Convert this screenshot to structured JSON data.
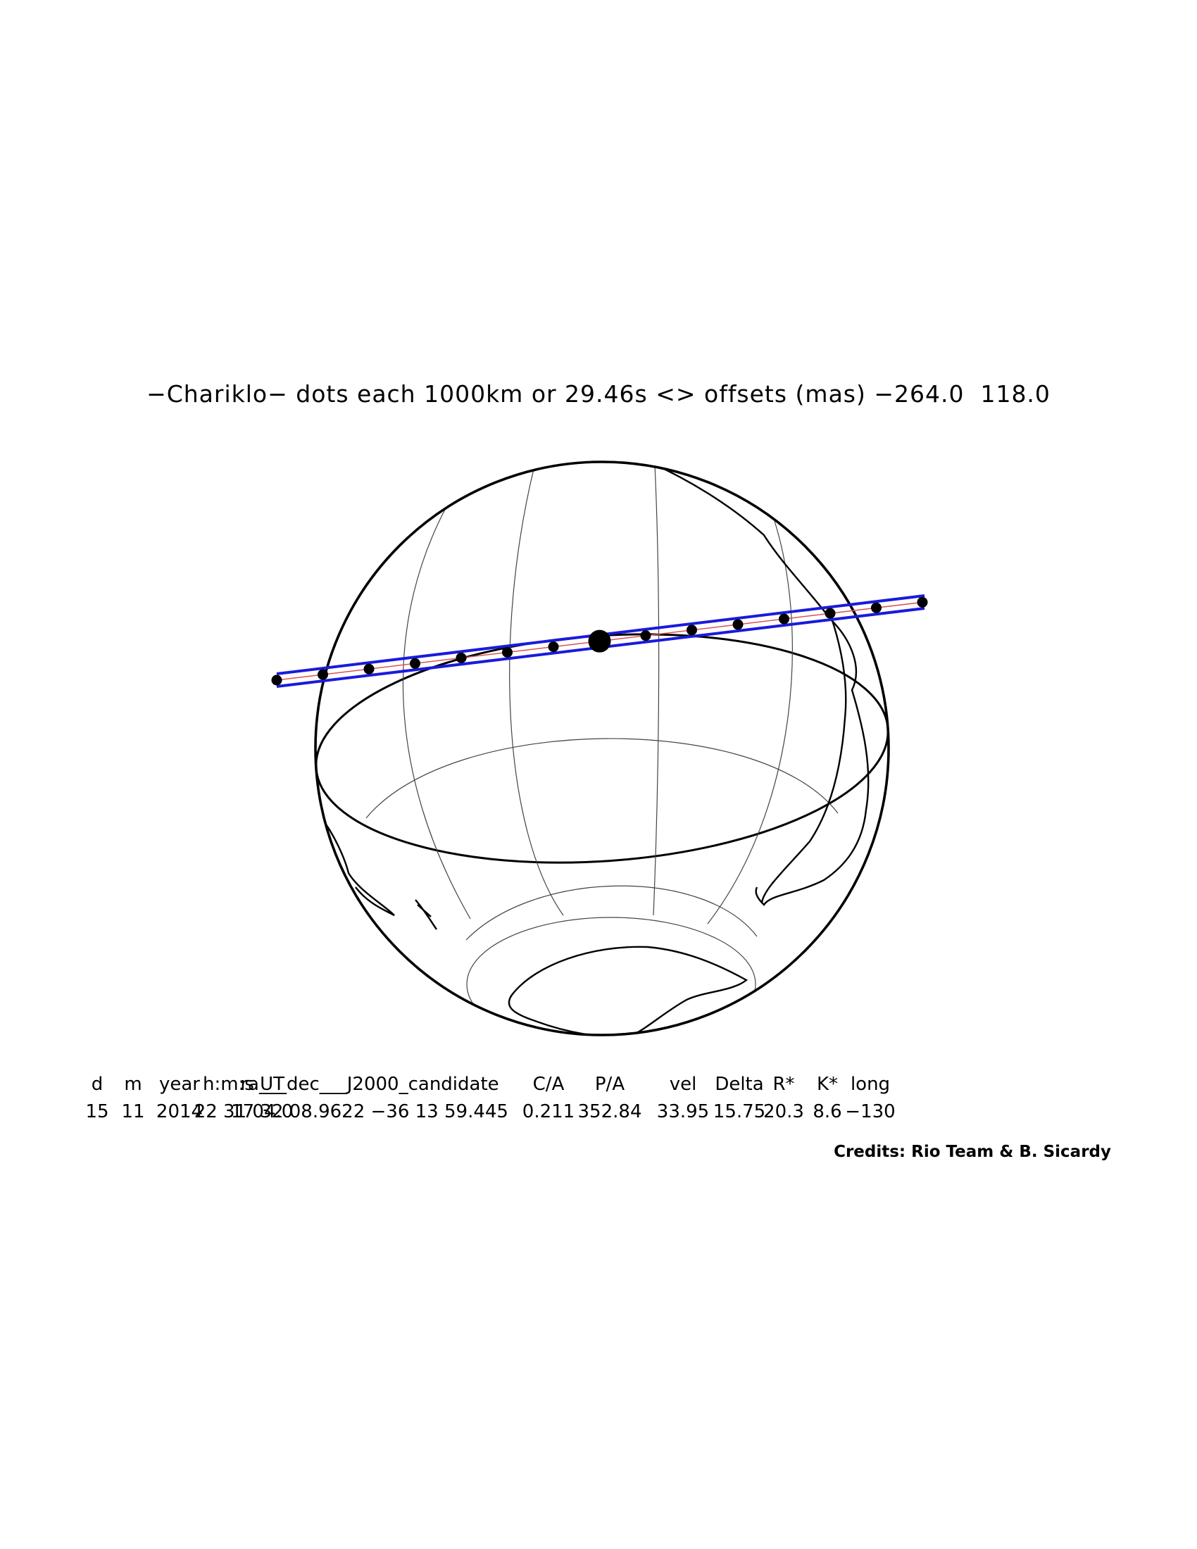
{
  "title": "−Chariklo− dots each 1000km or 29.46s <> offsets (mas) −264.0  118.0",
  "table": {
    "headers": [
      "d",
      "m",
      "year",
      "h:m:s UT",
      "ra___dec___J2000_candidate",
      "C/A",
      "P/A",
      "vel",
      "Delta",
      "R*",
      "K*",
      "long"
    ],
    "values": [
      "15",
      "11",
      "2014",
      "22 31 04.0",
      "17 32 08.9622 −36 13 59.445",
      "0.211",
      "352.84",
      "33.95",
      "15.75",
      "20.3",
      "8.6",
      "−130"
    ]
  },
  "credits": "Credits: Rio Team & B. Sicardy",
  "colors": {
    "shadow_path": "#1a1adb",
    "central_line": "#d9534f",
    "night_side": "#d3d3d3"
  }
}
